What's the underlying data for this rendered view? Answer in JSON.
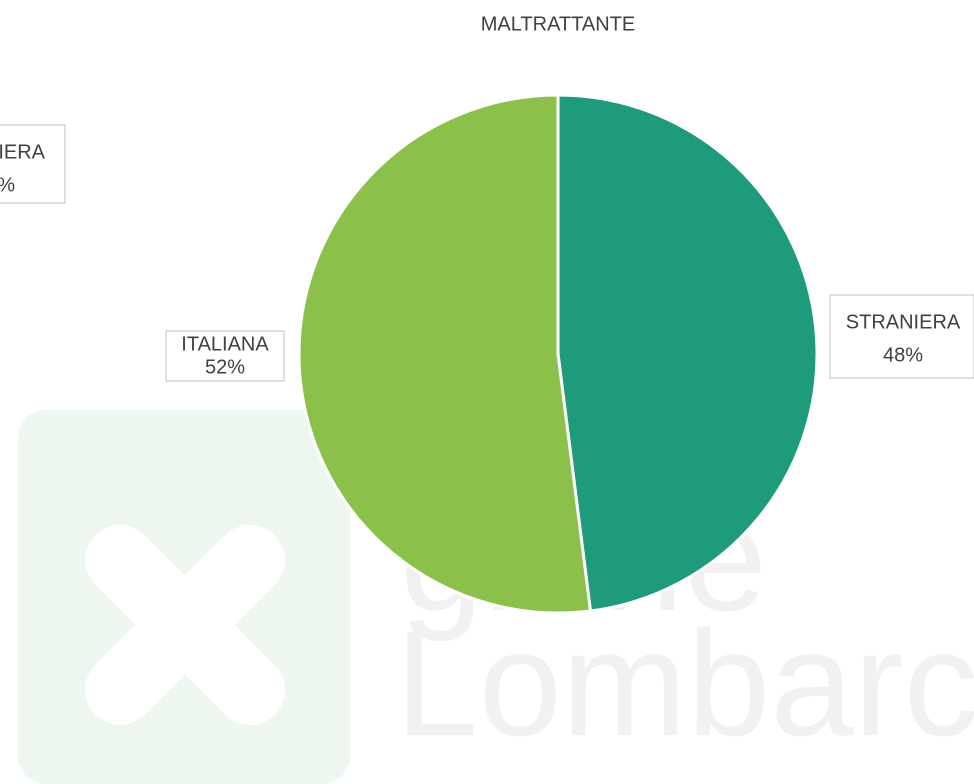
{
  "chart_data": {
    "type": "pie",
    "title": "MALTRATTANTE",
    "categories": [
      "STRANIERA",
      "ITALIANA"
    ],
    "values": [
      48,
      52
    ],
    "value_labels": [
      "48%",
      "52%"
    ],
    "colors": [
      "#1e9b7a",
      "#8bc14a"
    ]
  },
  "fragment": {
    "lines": [
      "NIERA",
      "%"
    ]
  },
  "watermark": {
    "lines": [
      "gione",
      "Lombarc"
    ]
  }
}
